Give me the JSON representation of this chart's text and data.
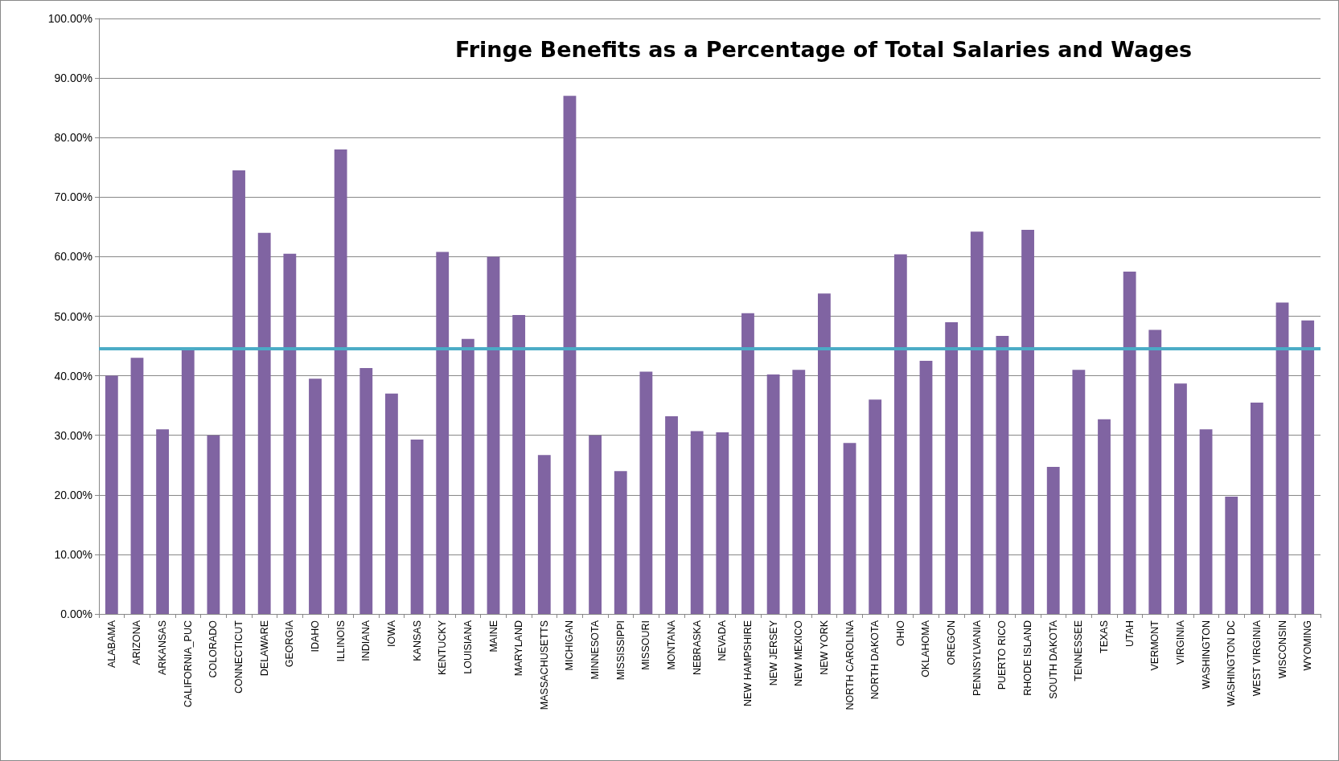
{
  "chart_data": {
    "type": "bar",
    "title": "Fringe Benefits as a Percentage of Total Salaries and Wages",
    "categories": [
      "ALABAMA",
      "ARIZONA",
      "ARKANSAS",
      "CALIFORNIA_PUC",
      "COLORADO",
      "CONNECTICUT",
      "DELAWARE",
      "GEORGIA",
      "IDAHO",
      "ILLINOIS",
      "INDIANA",
      "IOWA",
      "KANSAS",
      "KENTUCKY",
      "LOUISIANA",
      "MAINE",
      "MARYLAND",
      "MASSACHUSETTS",
      "MICHIGAN",
      "MINNESOTA",
      "MISSISSIPPI",
      "MISSOURI",
      "MONTANA",
      "NEBRASKA",
      "NEVADA",
      "NEW HAMPSHIRE",
      "NEW JERSEY",
      "NEW MEXICO",
      "NEW YORK",
      "NORTH CAROLINA",
      "NORTH DAKOTA",
      "OHIO",
      "OKLAHOMA",
      "OREGON",
      "PENNSYLVANIA",
      "PUERTO RICO",
      "RHODE ISLAND",
      "SOUTH DAKOTA",
      "TENNESSEE",
      "TEXAS",
      "UTAH",
      "VERMONT",
      "VIRGINIA",
      "WASHINGTON",
      "WASHINGTON DC",
      "WEST VIRGINIA",
      "WISCONSIN",
      "WYOMING"
    ],
    "values": [
      40.0,
      43.0,
      31.0,
      44.5,
      30.0,
      74.5,
      64.0,
      60.5,
      39.5,
      78.0,
      41.3,
      37.0,
      29.3,
      60.8,
      46.2,
      60.0,
      50.2,
      26.7,
      87.0,
      30.0,
      24.0,
      40.7,
      33.2,
      30.7,
      30.5,
      50.5,
      40.2,
      41.0,
      53.8,
      28.7,
      36.0,
      60.4,
      42.5,
      49.0,
      64.2,
      46.7,
      64.5,
      24.7,
      41.0,
      32.7,
      57.5,
      47.7,
      38.7,
      31.0,
      19.7,
      35.5,
      52.3,
      49.3
    ],
    "color": "#8064a2",
    "ylim": [
      0,
      100
    ],
    "yticks": [
      {
        "value": 0,
        "label": "0.00%"
      },
      {
        "value": 10,
        "label": "10.00%"
      },
      {
        "value": 20,
        "label": "20.00%"
      },
      {
        "value": 30,
        "label": "30.00%"
      },
      {
        "value": 40,
        "label": "40.00%"
      },
      {
        "value": 50,
        "label": "50.00%"
      },
      {
        "value": 60,
        "label": "60.00%"
      },
      {
        "value": 70,
        "label": "70.00%"
      },
      {
        "value": 80,
        "label": "80.00%"
      },
      {
        "value": 90,
        "label": "90.00%"
      },
      {
        "value": 100,
        "label": "100.00%"
      }
    ],
    "ref_lines": [
      {
        "axis": "y",
        "value": 44.6,
        "color": "#4bacc6",
        "line_style": "solid"
      }
    ],
    "grid": "y"
  }
}
